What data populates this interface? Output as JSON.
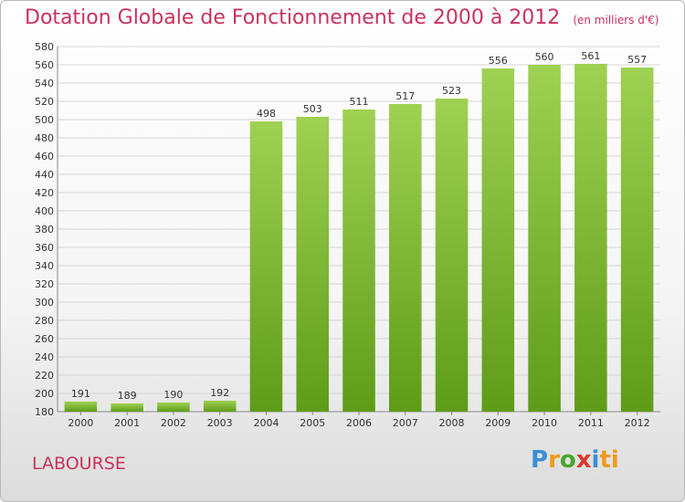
{
  "title": "Dotation Globale de Fonctionnement de 2000 à 2012",
  "unit": "(en milliers d'€)",
  "commune": "LABOURSE",
  "logo": [
    "P",
    "r",
    "o",
    "x",
    "i",
    "ti"
  ],
  "colors": {
    "bar_top": "#9fd152",
    "bar_bottom": "#5e9c18",
    "title": "#c9325d",
    "grid": "#d6d6d6"
  },
  "chart_data": {
    "type": "bar",
    "categories": [
      "2000",
      "2001",
      "2002",
      "2003",
      "2004",
      "2005",
      "2006",
      "2007",
      "2008",
      "2009",
      "2010",
      "2011",
      "2012"
    ],
    "values": [
      191,
      189,
      190,
      192,
      498,
      503,
      511,
      517,
      523,
      556,
      560,
      561,
      557
    ],
    "title": "Dotation Globale de Fonctionnement de 2000 à 2012",
    "ylabel": "",
    "xlabel": "",
    "ylim": [
      180,
      580
    ],
    "ytick_step": 20,
    "grid": true
  }
}
